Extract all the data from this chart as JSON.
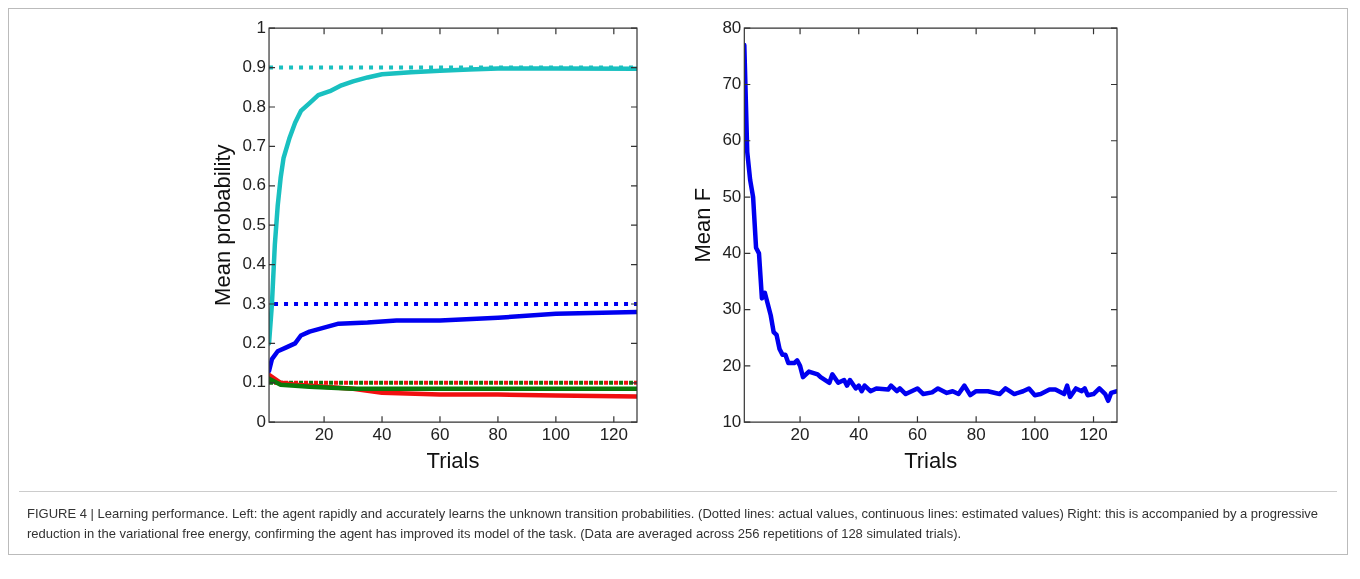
{
  "chart_data": [
    {
      "type": "line",
      "xlabel": "Trials",
      "ylabel": "Mean probability",
      "xlim": [
        1,
        128
      ],
      "xticks": [
        20,
        40,
        60,
        80,
        100,
        120
      ],
      "ylim": [
        0,
        1
      ],
      "yticks": [
        0,
        0.1,
        0.2,
        0.3,
        0.4,
        0.5,
        0.6,
        0.7,
        0.8,
        0.9,
        1
      ],
      "legend": false,
      "series": [
        {
          "color": "#19c0c0",
          "x": [
            1,
            2,
            3,
            4,
            5,
            6,
            8,
            10,
            12,
            15,
            18,
            22,
            26,
            30,
            35,
            40,
            50,
            60,
            70,
            80,
            100,
            128
          ],
          "values": [
            0.2,
            0.3,
            0.45,
            0.55,
            0.62,
            0.67,
            0.72,
            0.76,
            0.79,
            0.81,
            0.83,
            0.84,
            0.855,
            0.865,
            0.875,
            0.883,
            0.888,
            0.892,
            0.895,
            0.898,
            0.898,
            0.897
          ]
        },
        {
          "color": "#0000f0",
          "x": [
            1,
            2,
            4,
            7,
            10,
            12,
            15,
            20,
            25,
            35,
            45,
            60,
            80,
            100,
            128
          ],
          "values": [
            0.13,
            0.16,
            0.18,
            0.19,
            0.2,
            0.22,
            0.23,
            0.24,
            0.25,
            0.253,
            0.258,
            0.258,
            0.265,
            0.275,
            0.28
          ]
        },
        {
          "color": "#0a7a0a",
          "x": [
            1,
            5,
            15,
            30,
            50,
            128
          ],
          "values": [
            0.11,
            0.095,
            0.09,
            0.085,
            0.085,
            0.085
          ]
        },
        {
          "color": "#f01010",
          "x": [
            1,
            5,
            10,
            20,
            30,
            40,
            60,
            80,
            100,
            128
          ],
          "values": [
            0.12,
            0.1,
            0.095,
            0.09,
            0.085,
            0.075,
            0.07,
            0.07,
            0.068,
            0.065
          ]
        }
      ],
      "ref_lines": [
        {
          "axis": "y",
          "value": 0.9,
          "color": "#19c0c0",
          "line_style": "dotted"
        },
        {
          "axis": "y",
          "value": 0.3,
          "color": "#0000f0",
          "line_style": "dotted"
        },
        {
          "axis": "y",
          "value": 0.1,
          "color": "#0a7a0a",
          "line_style": "dotted"
        },
        {
          "axis": "y",
          "value": 0.1,
          "color": "#f01010",
          "line_style": "dotted"
        }
      ],
      "annotations": [
        "FIGURE 4 | Learning performance. Left: the agent rapidly and accurately learns the unknown transition probabilities. (Dotted lines: actual values, continuous lines: estimated values) Right: this is accompanied by a progressive reduction in the variational free energy, confirming the agent has improved its model of the task. (Data are averaged across 256 repetitions of 128 simulated trials)."
      ]
    },
    {
      "type": "line",
      "xlabel": "Trials",
      "ylabel": "Mean F",
      "xlim": [
        1,
        128
      ],
      "xticks": [
        20,
        40,
        60,
        80,
        100,
        120
      ],
      "ylim": [
        10,
        80
      ],
      "yticks": [
        10,
        20,
        30,
        40,
        50,
        60,
        70,
        80
      ],
      "legend": false,
      "series": [
        {
          "color": "#0000f0",
          "x": [
            1,
            2,
            3,
            4,
            5,
            6,
            7,
            8,
            9,
            10,
            11,
            12,
            13,
            14,
            15,
            16,
            18,
            19,
            20,
            21,
            22,
            23,
            26,
            27,
            30,
            31,
            33,
            35,
            36,
            37,
            39,
            40,
            41,
            42,
            44,
            46,
            50,
            51,
            53,
            54,
            56,
            60,
            62,
            65,
            67,
            70,
            72,
            74,
            76,
            78,
            80,
            84,
            88,
            90,
            93,
            96,
            98,
            100,
            102,
            105,
            107,
            110,
            111,
            112,
            114,
            116,
            117,
            118,
            120,
            122,
            124,
            125,
            126,
            128
          ],
          "values": [
            77,
            58,
            53,
            50,
            41,
            40,
            32,
            33,
            31,
            29,
            26,
            25.5,
            23,
            22,
            22,
            20.5,
            20.5,
            21,
            20,
            18,
            18.5,
            19,
            18.5,
            18,
            17,
            18.5,
            17,
            17.5,
            16.5,
            17.5,
            16,
            16.5,
            15.5,
            16.5,
            15.5,
            16,
            15.8,
            16.5,
            15.5,
            16,
            15,
            16,
            15,
            15.3,
            16,
            15.2,
            15.5,
            15,
            16.5,
            14.8,
            15.5,
            15.5,
            15,
            16,
            15,
            15.5,
            16,
            14.8,
            15,
            15.8,
            15.8,
            15,
            16.5,
            14.5,
            16,
            15.5,
            16,
            14.8,
            15,
            16,
            15,
            13.8,
            15.2,
            15.5
          ]
        }
      ]
    }
  ]
}
